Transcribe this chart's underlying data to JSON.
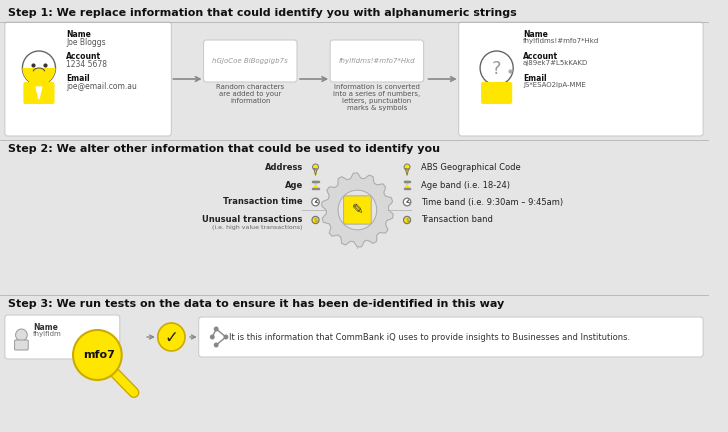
{
  "bg_color": "#e5e5e5",
  "title_color": "#111111",
  "step1_title": "Step 1: We replace information that could identify you with alphanumeric strings",
  "step2_title": "Step 2: We alter other information that could be used to identify you",
  "step3_title": "Step 3: We run tests on the data to ensure it has been de-identified in this way",
  "yellow": "#FFE600",
  "border_color": "#cccccc",
  "name_label": "Name",
  "name_value": "Joe Bloggs",
  "account_label": "Account",
  "account_value": "1234 5678",
  "email_label": "Email",
  "email_value": "joe@email.com.au",
  "mid1_text": "hGJoCoe BlBoggigb7s",
  "mid2_text": "fhylfldms!#mfo7*Hkd",
  "rand_chars_label": "Random characters\nare added to your\ninformation",
  "info_converted_label": "Information is converted\ninto a series of numbers,\nletters, punctuation\nmarks & symbols",
  "name_enc": "fhylfldms!#mfo7*Hkd",
  "account_enc": "aj89ek7#L5kKAKD",
  "email_enc": "JS*ESAO2lpA-MME",
  "left_items": [
    "Address",
    "Age",
    "Transaction time",
    "Unusual transactions"
  ],
  "left_items_sub": [
    "",
    "",
    "",
    "(i.e. high value transactions)"
  ],
  "right_items": [
    "ABS Geographical Code",
    "Age band (i.e. 18-24)",
    "Time band (i.e. 9:30am – 9:45am)",
    "Transaction band"
  ],
  "step3_result": "It is this information that CommBank iQ uses to provide insights to Businesses and Institutions.",
  "mfo_text": "mfo7"
}
